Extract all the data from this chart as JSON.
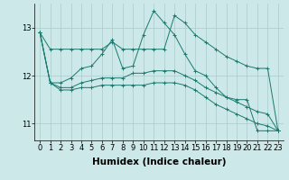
{
  "xlabel": "Humidex (Indice chaleur)",
  "background_color": "#cce8e8",
  "grid_color": "#aacccc",
  "line_color": "#1a7a6e",
  "x": [
    0,
    1,
    2,
    3,
    4,
    5,
    6,
    7,
    8,
    9,
    10,
    11,
    12,
    13,
    14,
    15,
    16,
    17,
    18,
    19,
    20,
    21,
    22,
    23
  ],
  "series": [
    [
      12.9,
      12.55,
      12.55,
      12.55,
      12.55,
      12.55,
      12.55,
      12.7,
      12.55,
      12.55,
      12.55,
      12.55,
      12.55,
      13.25,
      13.1,
      12.85,
      12.7,
      12.55,
      12.4,
      12.3,
      12.2,
      12.15,
      12.15,
      10.85
    ],
    [
      12.9,
      11.85,
      11.85,
      11.95,
      12.15,
      12.2,
      12.45,
      12.75,
      12.15,
      12.2,
      12.85,
      13.35,
      13.1,
      12.85,
      12.45,
      12.1,
      12.0,
      11.75,
      11.55,
      11.5,
      11.5,
      10.85,
      10.85,
      10.85
    ],
    [
      12.9,
      11.85,
      11.75,
      11.75,
      11.85,
      11.9,
      11.95,
      11.95,
      11.95,
      12.05,
      12.05,
      12.1,
      12.1,
      12.1,
      12.0,
      11.9,
      11.75,
      11.65,
      11.55,
      11.45,
      11.35,
      11.25,
      11.2,
      10.85
    ],
    [
      12.9,
      11.85,
      11.7,
      11.7,
      11.75,
      11.75,
      11.8,
      11.8,
      11.8,
      11.8,
      11.8,
      11.85,
      11.85,
      11.85,
      11.8,
      11.7,
      11.55,
      11.4,
      11.3,
      11.2,
      11.1,
      11.0,
      10.95,
      10.85
    ]
  ],
  "ylim": [
    10.65,
    13.5
  ],
  "yticks": [
    11,
    12,
    13
  ],
  "xticks": [
    0,
    1,
    2,
    3,
    4,
    5,
    6,
    7,
    8,
    9,
    10,
    11,
    12,
    13,
    14,
    15,
    16,
    17,
    18,
    19,
    20,
    21,
    22,
    23
  ],
  "tick_fontsize": 6,
  "xlabel_fontsize": 7.5
}
